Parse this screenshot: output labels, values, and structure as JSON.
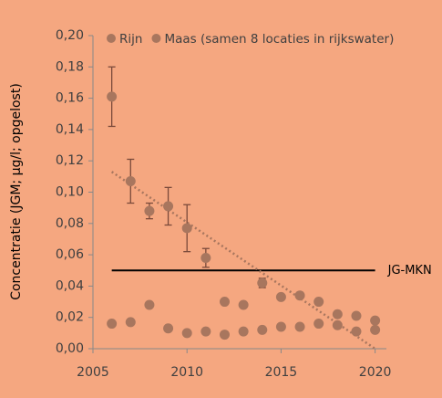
{
  "chart_data": {
    "type": "scatter",
    "y_label": "Concentratie (JGM; µg/l; opgelost)",
    "series": [
      {
        "name": "Rijn",
        "color": "#a8765e",
        "x": [
          2006,
          2007,
          2008,
          2009,
          2010,
          2011,
          2012,
          2013,
          2014,
          2015,
          2016,
          2017,
          2018,
          2019,
          2020
        ],
        "values": [
          0.161,
          0.107,
          0.088,
          0.091,
          0.077,
          0.058,
          0.03,
          0.028,
          0.042,
          0.033,
          0.034,
          0.03,
          0.022,
          0.021,
          0.018
        ],
        "errors": [
          0.019,
          0.014,
          0.005,
          0.012,
          0.015,
          0.006,
          null,
          null,
          0.003,
          null,
          null,
          null,
          null,
          null,
          null
        ]
      },
      {
        "name": "Maas (samen 8 locaties in rijkswater)",
        "color": "#a8765e",
        "x": [
          2006,
          2007,
          2008,
          2009,
          2010,
          2011,
          2012,
          2013,
          2014,
          2015,
          2016,
          2017,
          2018,
          2019,
          2020
        ],
        "values": [
          0.016,
          0.017,
          0.028,
          0.013,
          0.01,
          0.011,
          0.009,
          0.011,
          0.012,
          0.014,
          0.014,
          0.016,
          0.015,
          0.011,
          0.012
        ]
      }
    ],
    "trend": {
      "x": [
        2006,
        2020
      ],
      "values": [
        0.113,
        0
      ],
      "color": "#a8765e"
    },
    "reference": {
      "label": "JG-MKN",
      "value": 0.05,
      "x": [
        2006,
        2020
      ],
      "color": "#000000"
    },
    "xlim": [
      2005,
      2020.6
    ],
    "ylim": [
      0,
      0.2
    ],
    "xticks": [
      2005,
      2010,
      2015,
      2020
    ],
    "yticks": [
      {
        "value": 0,
        "label": "0,00"
      },
      {
        "value": 0.02,
        "label": "0,02"
      },
      {
        "value": 0.04,
        "label": "0,04"
      },
      {
        "value": 0.06,
        "label": "0,06"
      },
      {
        "value": 0.08,
        "label": "0,08"
      },
      {
        "value": 0.1,
        "label": "0,10"
      },
      {
        "value": 0.12,
        "label": "0,12"
      },
      {
        "value": 0.14,
        "label": "0,14"
      },
      {
        "value": 0.16,
        "label": "0,16"
      },
      {
        "value": 0.18,
        "label": "0,18"
      },
      {
        "value": 0.2,
        "label": "0,20"
      }
    ]
  }
}
